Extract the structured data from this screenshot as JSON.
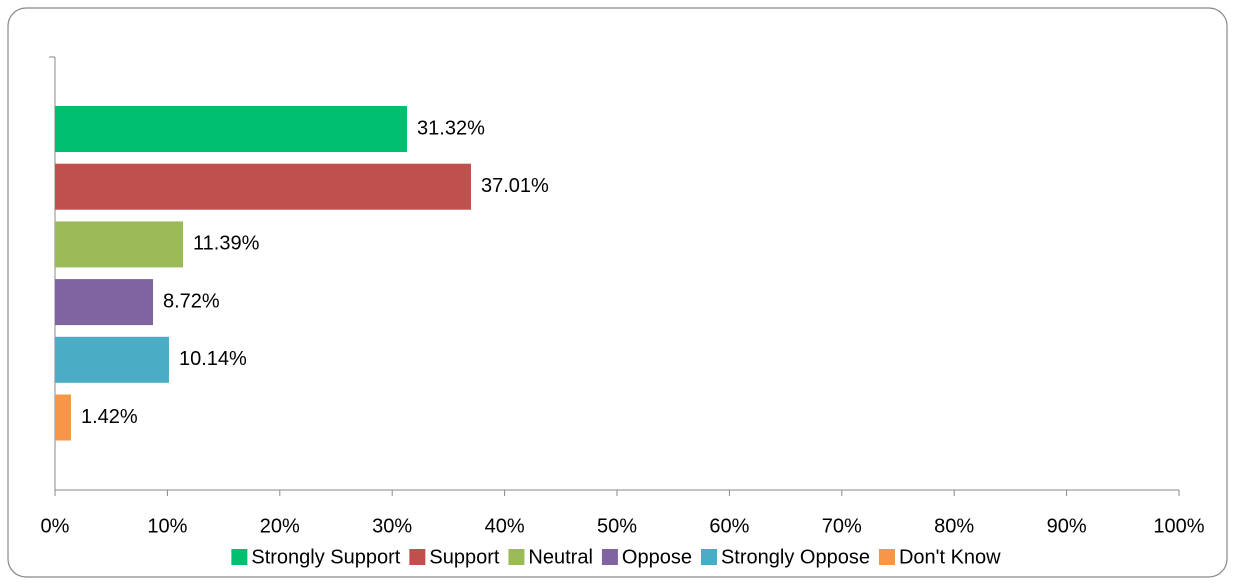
{
  "chart_data": {
    "type": "bar",
    "orientation": "horizontal",
    "series": [
      {
        "name": "Strongly Support",
        "color": "#00c070",
        "values": [
          31.32
        ],
        "value_labels": [
          "31.32%"
        ]
      },
      {
        "name": "Support",
        "color": "#c0504d",
        "values": [
          37.01
        ],
        "value_labels": [
          "37.01%"
        ]
      },
      {
        "name": "Neutral",
        "color": "#9bbb59",
        "values": [
          11.39
        ],
        "value_labels": [
          "11.39%"
        ]
      },
      {
        "name": "Oppose",
        "color": "#8064a2",
        "values": [
          8.72
        ],
        "value_labels": [
          "8.72%"
        ]
      },
      {
        "name": "Strongly Oppose",
        "color": "#4bacc6",
        "values": [
          10.14
        ],
        "value_labels": [
          "10.14%"
        ]
      },
      {
        "name": "Don't Know",
        "color": "#f79646",
        "values": [
          1.42
        ],
        "value_labels": [
          "1.42%"
        ]
      }
    ],
    "xlim": [
      0,
      100
    ],
    "xticks": [
      {
        "value": 0,
        "label": "0%"
      },
      {
        "value": 10,
        "label": "10%"
      },
      {
        "value": 20,
        "label": "20%"
      },
      {
        "value": 30,
        "label": "30%"
      },
      {
        "value": 40,
        "label": "40%"
      },
      {
        "value": 50,
        "label": "50%"
      },
      {
        "value": 60,
        "label": "60%"
      },
      {
        "value": 70,
        "label": "70%"
      },
      {
        "value": 80,
        "label": "80%"
      },
      {
        "value": 90,
        "label": "90%"
      },
      {
        "value": 100,
        "label": "100%"
      }
    ],
    "legend": "bottom"
  }
}
